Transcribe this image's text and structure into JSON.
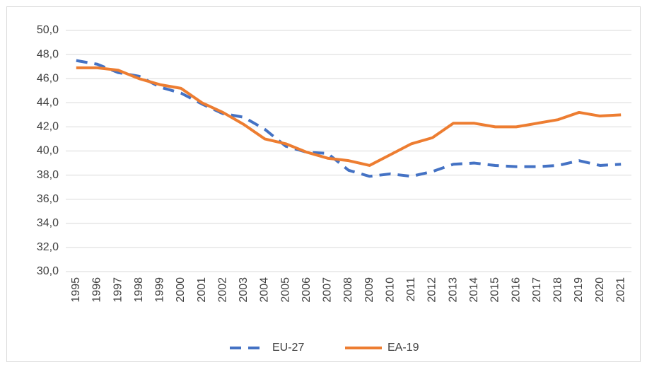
{
  "chart_data": {
    "type": "line",
    "categories": [
      "1995",
      "1996",
      "1997",
      "1998",
      "1999",
      "2000",
      "2001",
      "2002",
      "2003",
      "2004",
      "2005",
      "2006",
      "2007",
      "2008",
      "2009",
      "2010",
      "2011",
      "2012",
      "2013",
      "2014",
      "2015",
      "2016",
      "2017",
      "2018",
      "2019",
      "2020",
      "2021"
    ],
    "series": [
      {
        "name": "EU-27",
        "color": "#4472c4",
        "dashed": true,
        "values": [
          47.5,
          47.2,
          46.5,
          46.2,
          45.3,
          44.8,
          43.9,
          43.1,
          42.8,
          41.8,
          40.4,
          39.9,
          39.8,
          38.4,
          37.9,
          38.1,
          37.9,
          38.3,
          38.9,
          39.0,
          38.8,
          38.7,
          38.7,
          38.8,
          39.2,
          38.8,
          38.9
        ]
      },
      {
        "name": "EA-19",
        "color": "#ed7d31",
        "dashed": false,
        "values": [
          46.9,
          46.9,
          46.7,
          46.0,
          45.5,
          45.2,
          44.0,
          43.2,
          42.2,
          41.0,
          40.6,
          39.9,
          39.4,
          39.2,
          38.8,
          39.7,
          40.6,
          41.1,
          42.3,
          42.3,
          42.0,
          42.0,
          42.3,
          42.6,
          43.2,
          42.9,
          43.0
        ]
      }
    ],
    "ylim": [
      30,
      50
    ],
    "yticks": [
      {
        "value": 30,
        "label": "30,0"
      },
      {
        "value": 32,
        "label": "32,0"
      },
      {
        "value": 34,
        "label": "34,0"
      },
      {
        "value": 36,
        "label": "36,0"
      },
      {
        "value": 38,
        "label": "38,0"
      },
      {
        "value": 40,
        "label": "40,0"
      },
      {
        "value": 42,
        "label": "42,0"
      },
      {
        "value": 44,
        "label": "44,0"
      },
      {
        "value": 46,
        "label": "46,0"
      },
      {
        "value": 48,
        "label": "48,0"
      },
      {
        "value": 50,
        "label": "50,0"
      }
    ],
    "grid": true,
    "legend": "bottom"
  }
}
